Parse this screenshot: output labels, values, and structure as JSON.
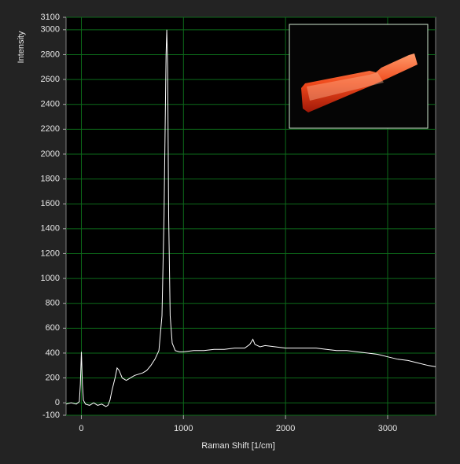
{
  "chart_data": {
    "type": "line",
    "x_label": "Raman Shift  [1/cm]",
    "y_label": "Intensity",
    "xlim": [
      -150,
      3470
    ],
    "xticks": [
      0,
      1000,
      2000,
      3000
    ],
    "ylim": [
      -100,
      3100
    ],
    "yticks": [
      -100,
      0,
      200,
      400,
      600,
      800,
      1000,
      1200,
      1400,
      1600,
      1800,
      2000,
      2200,
      2400,
      2600,
      2800,
      3000,
      3100
    ],
    "grid": true,
    "series": [
      {
        "color": "#ffffff",
        "x": [
          -150,
          -100,
          -50,
          -20,
          -10,
          0,
          10,
          20,
          40,
          80,
          120,
          160,
          200,
          240,
          260,
          280,
          300,
          330,
          350,
          370,
          400,
          440,
          480,
          520,
          560,
          600,
          640,
          680,
          720,
          760,
          790,
          810,
          820,
          830,
          837,
          845,
          855,
          870,
          890,
          920,
          960,
          1000,
          1100,
          1200,
          1300,
          1400,
          1500,
          1600,
          1650,
          1680,
          1700,
          1750,
          1800,
          1900,
          2000,
          2100,
          2200,
          2300,
          2400,
          2500,
          2600,
          2700,
          2800,
          2900,
          3000,
          3100,
          3200,
          3300,
          3400,
          3470
        ],
        "values": [
          -10,
          0,
          -10,
          10,
          150,
          410,
          150,
          20,
          -10,
          -20,
          0,
          -20,
          -10,
          -30,
          -20,
          20,
          100,
          200,
          280,
          260,
          200,
          180,
          200,
          220,
          230,
          240,
          260,
          300,
          350,
          420,
          700,
          1500,
          2150,
          2800,
          3000,
          2700,
          1500,
          700,
          480,
          420,
          410,
          410,
          420,
          420,
          430,
          430,
          440,
          440,
          470,
          510,
          470,
          450,
          460,
          450,
          440,
          440,
          440,
          440,
          430,
          420,
          420,
          410,
          400,
          390,
          370,
          350,
          340,
          320,
          300,
          290
        ]
      }
    ]
  }
}
